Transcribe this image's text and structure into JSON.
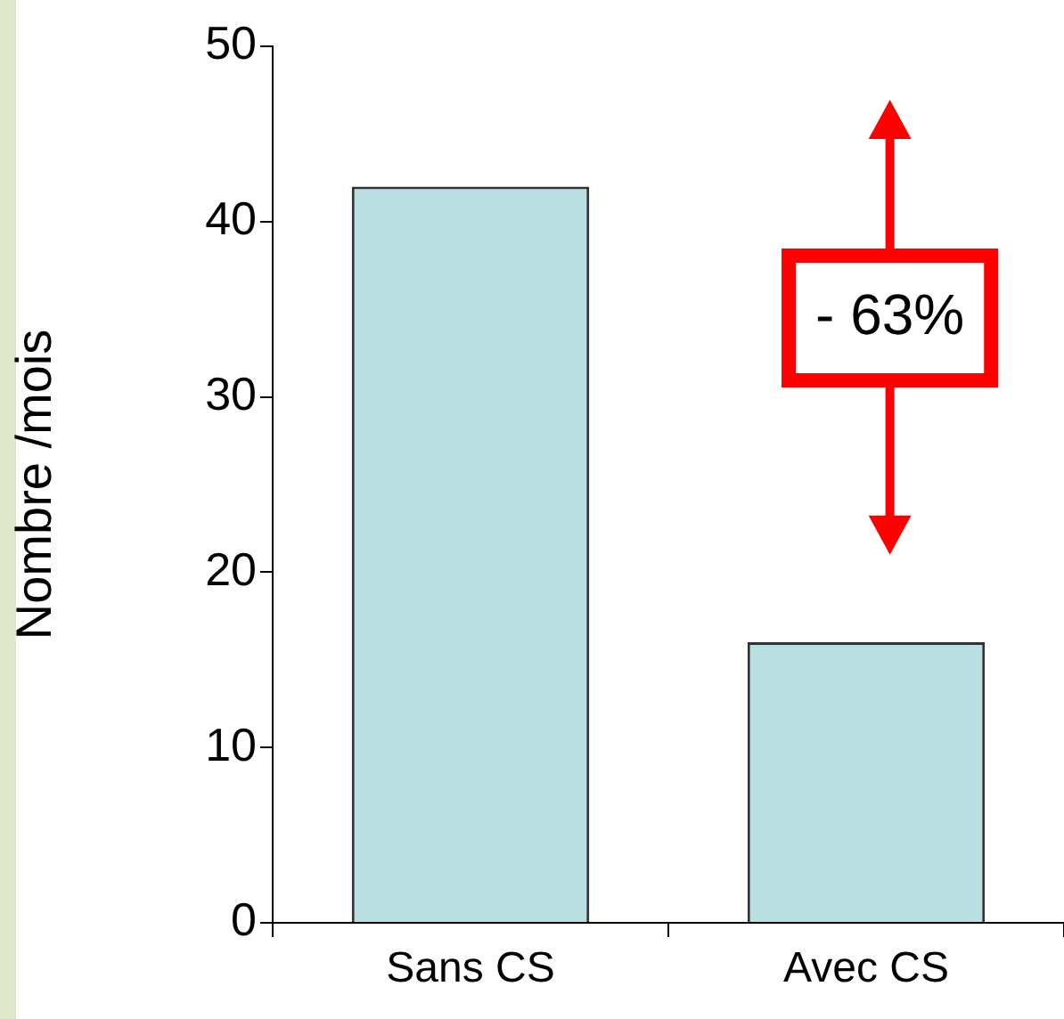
{
  "chart_data": {
    "type": "bar",
    "ylabel": "Nombre /mois",
    "categories": [
      "Sans CS",
      "Avec CS"
    ],
    "values": [
      42,
      16
    ],
    "color": "#b9dfe2",
    "ylim": [
      0,
      50
    ],
    "yticks": [
      0,
      10,
      20,
      30,
      40,
      50
    ],
    "grid": false,
    "legend": false,
    "annotations": [
      "- 63%"
    ]
  }
}
